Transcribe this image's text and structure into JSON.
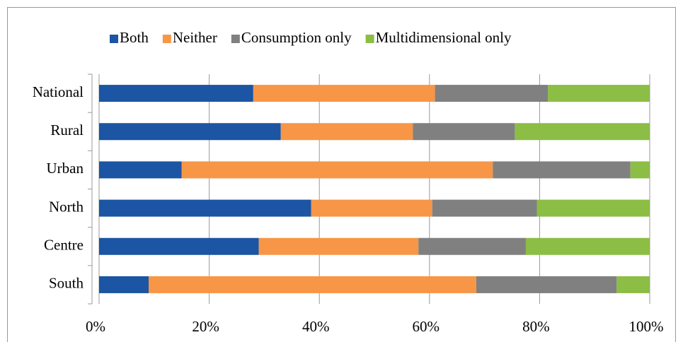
{
  "chart_data": {
    "type": "stacked-barh",
    "categories": [
      "National",
      "Rural",
      "Urban",
      "North",
      "Centre",
      "South"
    ],
    "series": [
      {
        "name": "Both",
        "color": "#1b55a3",
        "values": [
          28,
          33,
          15,
          38.5,
          29,
          9
        ]
      },
      {
        "name": "Neither",
        "color": "#f79646",
        "values": [
          33,
          24,
          56.5,
          22,
          29,
          59.5
        ]
      },
      {
        "name": "Consumption only",
        "color": "#808080",
        "values": [
          20.5,
          18.5,
          25,
          19,
          19.5,
          25.5
        ]
      },
      {
        "name": "Multidimensional only",
        "color": "#8cbd45",
        "values": [
          18.5,
          24.5,
          3.5,
          20.5,
          22.5,
          6
        ]
      }
    ],
    "xlim": [
      0,
      100
    ],
    "xticks": [
      {
        "value": 0,
        "label": "0%"
      },
      {
        "value": 20,
        "label": "20%"
      },
      {
        "value": 40,
        "label": "40%"
      },
      {
        "value": 60,
        "label": "60%"
      },
      {
        "value": 80,
        "label": "80%"
      },
      {
        "value": 100,
        "label": "100%"
      }
    ],
    "grid": true,
    "legend": "top"
  }
}
